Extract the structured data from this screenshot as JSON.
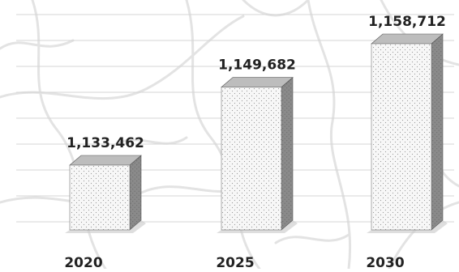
{
  "chart_data": {
    "type": "bar",
    "title": "",
    "xlabel": "",
    "ylabel": "",
    "categories": [
      "2020",
      "2025",
      "2030"
    ],
    "values": [
      1133462,
      1149682,
      1158712
    ],
    "data_labels": [
      "1,133,462",
      "1,149,682",
      "1,158,712"
    ],
    "grid": true,
    "legend": "none",
    "style": "3d-bars-dotted",
    "colors": {
      "bar_front": "#f7f7f7",
      "bar_side": "#8a8a8a",
      "bar_top": "#bdbdbd",
      "stipple": "#9a9a9a",
      "text": "#222222",
      "grid": "#d4d4d4",
      "map_lines": "#e3e3e3"
    }
  }
}
